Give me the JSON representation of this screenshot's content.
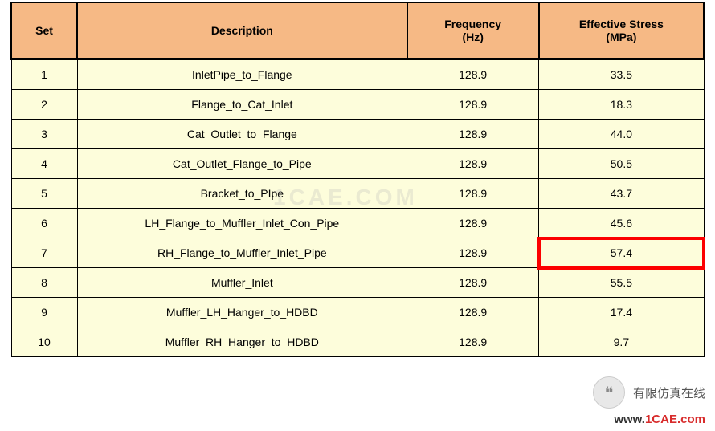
{
  "table": {
    "columns": [
      {
        "label": "Set",
        "key": "set"
      },
      {
        "label": "Description",
        "key": "description"
      },
      {
        "label": "Frequency\n(Hz)",
        "key": "frequency"
      },
      {
        "label": "Effective Stress\n(MPa)",
        "key": "stress"
      }
    ],
    "header_bg": "#f6b985",
    "body_bg": "#fdfddb",
    "border_color": "#000000",
    "highlight_border_color": "#fc0000",
    "header_fontsize": 14,
    "body_fontsize": 14,
    "rows": [
      {
        "set": "1",
        "description": "InletPipe_to_Flange",
        "frequency": "128.9",
        "stress": "33.5",
        "highlight_stress": false
      },
      {
        "set": "2",
        "description": "Flange_to_Cat_Inlet",
        "frequency": "128.9",
        "stress": "18.3",
        "highlight_stress": false
      },
      {
        "set": "3",
        "description": "Cat_Outlet_to_Flange",
        "frequency": "128.9",
        "stress": "44.0",
        "highlight_stress": false
      },
      {
        "set": "4",
        "description": "Cat_Outlet_Flange_to_Pipe",
        "frequency": "128.9",
        "stress": "50.5",
        "highlight_stress": false
      },
      {
        "set": "5",
        "description": "Bracket_to_PIpe",
        "frequency": "128.9",
        "stress": "43.7",
        "highlight_stress": false
      },
      {
        "set": "6",
        "description": "LH_Flange_to_Muffler_Inlet_Con_Pipe",
        "frequency": "128.9",
        "stress": "45.6",
        "highlight_stress": false
      },
      {
        "set": "7",
        "description": "RH_Flange_to_Muffler_Inlet_Pipe",
        "frequency": "128.9",
        "stress": "57.4",
        "highlight_stress": true
      },
      {
        "set": "8",
        "description": "Muffler_Inlet",
        "frequency": "128.9",
        "stress": "55.5",
        "highlight_stress": false
      },
      {
        "set": "9",
        "description": "Muffler_LH_Hanger_to_HDBD",
        "frequency": "128.9",
        "stress": "17.4",
        "highlight_stress": false
      },
      {
        "set": "10",
        "description": "Muffler_RH_Hanger_to_HDBD",
        "frequency": "128.9",
        "stress": "9.7",
        "highlight_stress": false
      }
    ]
  },
  "watermark": "1CAE.COM",
  "footer": {
    "logo_icon": "wechat-icon",
    "brand_text": "有限仿真在线",
    "url_prefix": "www.",
    "url_domain": "1CAE.com"
  }
}
